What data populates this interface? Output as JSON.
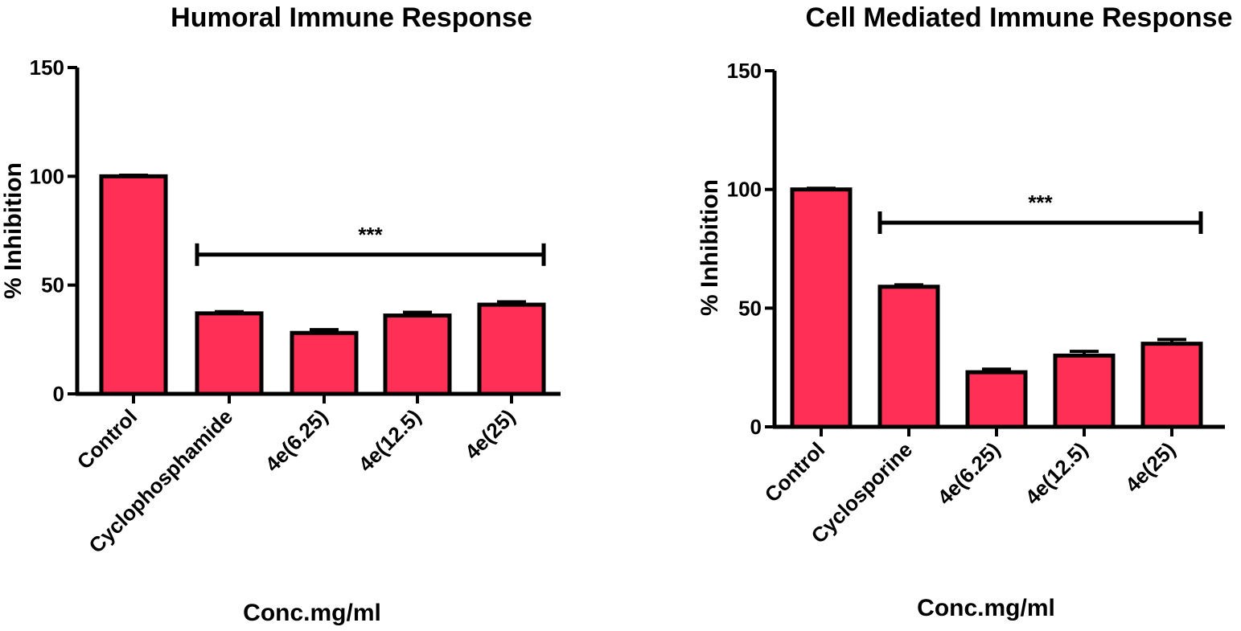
{
  "colors": {
    "bar_fill": "#ff2f55",
    "stroke": "#000000"
  },
  "chart_data": [
    {
      "type": "bar",
      "title": "Humoral Immune Response",
      "xlabel": "Conc.mg/ml",
      "ylabel": "% Inhibition",
      "ylim": [
        0,
        150
      ],
      "yticks": [
        "0",
        "50",
        "100",
        "150"
      ],
      "categories": [
        "Control",
        "Cyclophosphamide",
        "4e(6.25)",
        "4e(12.5)",
        "4e(25)"
      ],
      "values": [
        100,
        37,
        28,
        36,
        41
      ],
      "errors": [
        0.5,
        0.8,
        1.5,
        1.5,
        1.3
      ],
      "significance": {
        "label": "***",
        "from": "Cyclophosphamide",
        "to": "4e(25)",
        "y": 64
      }
    },
    {
      "type": "bar",
      "title": "Cell Mediated Immune Response",
      "xlabel": "Conc.mg/ml",
      "ylabel": "% Inhibition",
      "ylim": [
        0,
        150
      ],
      "yticks": [
        "0",
        "50",
        "100",
        "150"
      ],
      "categories": [
        "Control",
        "Cyclosporine",
        "4e(6.25)",
        "4e(12.5)",
        "4e(25)"
      ],
      "values": [
        100,
        59,
        23,
        30,
        35
      ],
      "errors": [
        0.5,
        0.8,
        1.3,
        1.8,
        1.8
      ],
      "significance": {
        "label": "***",
        "from": "Cyclosporine",
        "to": "4e(25)",
        "y": 86
      }
    }
  ]
}
